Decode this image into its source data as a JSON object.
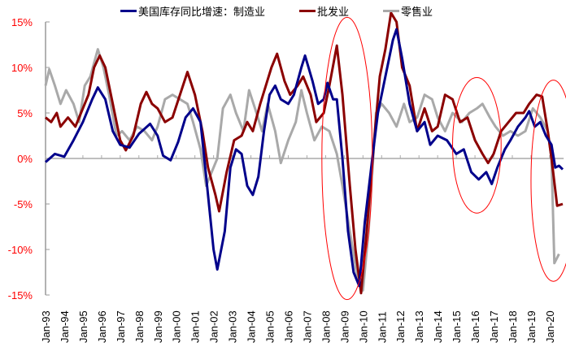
{
  "chart_data": {
    "type": "line",
    "title": "",
    "xlabel": "",
    "ylabel": "",
    "ylim": [
      -15,
      15
    ],
    "yticks": [
      15,
      10,
      5,
      0,
      -5,
      -10,
      -15
    ],
    "ytick_labels": [
      "15%",
      "10%",
      "5%",
      "0%",
      "-5%",
      "-10%",
      "-15%"
    ],
    "xlim": [
      1993,
      2020.9
    ],
    "xtick_labels": [
      "Jan-93",
      "Jan-94",
      "Jan-95",
      "Jan-96",
      "Jan-97",
      "Jan-98",
      "Jan-99",
      "Jan-00",
      "Jan-01",
      "Jan-02",
      "Jan-03",
      "Jan-04",
      "Jan-05",
      "Jan-06",
      "Jan-07",
      "Jan-08",
      "Jan-09",
      "Jan-10",
      "Jan-11",
      "Jan-12",
      "Jan-13",
      "Jan-14",
      "Jan-15",
      "Jan-16",
      "Jan-17",
      "Jan-18",
      "Jan-19",
      "Jan-20"
    ],
    "legend_position": "top",
    "series": [
      {
        "name": "美国库存同比增速：制造业",
        "color": "#00008b",
        "points": [
          [
            1993.0,
            -0.4
          ],
          [
            1993.5,
            0.5
          ],
          [
            1994.0,
            0.2
          ],
          [
            1994.5,
            2
          ],
          [
            1995.0,
            4
          ],
          [
            1995.5,
            6.5
          ],
          [
            1995.8,
            7.8
          ],
          [
            1996.2,
            6.5
          ],
          [
            1996.6,
            3
          ],
          [
            1997.0,
            1.5
          ],
          [
            1997.5,
            1.2
          ],
          [
            1998.0,
            2.7
          ],
          [
            1998.6,
            3.8
          ],
          [
            1999.0,
            2.5
          ],
          [
            1999.3,
            0.3
          ],
          [
            1999.7,
            -0.2
          ],
          [
            2000.1,
            1.8
          ],
          [
            2000.5,
            4.5
          ],
          [
            2000.9,
            5.5
          ],
          [
            2001.3,
            4
          ],
          [
            2001.6,
            -2
          ],
          [
            2002.0,
            -10
          ],
          [
            2002.2,
            -12.2
          ],
          [
            2002.6,
            -8
          ],
          [
            2002.9,
            -1
          ],
          [
            2003.2,
            1
          ],
          [
            2003.5,
            0.5
          ],
          [
            2003.8,
            -3
          ],
          [
            2004.1,
            -4
          ],
          [
            2004.4,
            -2
          ],
          [
            2004.7,
            3
          ],
          [
            2005.0,
            7
          ],
          [
            2005.3,
            8
          ],
          [
            2005.6,
            6.5
          ],
          [
            2006.0,
            6
          ],
          [
            2006.3,
            7
          ],
          [
            2006.7,
            10
          ],
          [
            2006.9,
            11.3
          ],
          [
            2007.3,
            8.5
          ],
          [
            2007.6,
            6
          ],
          [
            2007.9,
            6.5
          ],
          [
            2008.1,
            8.3
          ],
          [
            2008.4,
            6.5
          ],
          [
            2008.6,
            6.5
          ],
          [
            2008.9,
            0
          ],
          [
            2009.2,
            -8
          ],
          [
            2009.5,
            -12.5
          ],
          [
            2009.8,
            -14
          ],
          [
            2010.1,
            -7
          ],
          [
            2010.5,
            0
          ],
          [
            2010.8,
            5
          ],
          [
            2011.2,
            9
          ],
          [
            2011.6,
            13
          ],
          [
            2011.8,
            14.2
          ],
          [
            2012.1,
            11
          ],
          [
            2012.5,
            6
          ],
          [
            2012.9,
            3
          ],
          [
            2013.3,
            4
          ],
          [
            2013.6,
            1.5
          ],
          [
            2014.0,
            2.5
          ],
          [
            2014.5,
            2
          ],
          [
            2015.0,
            0.5
          ],
          [
            2015.4,
            1
          ],
          [
            2015.8,
            -1.5
          ],
          [
            2016.2,
            -2.3
          ],
          [
            2016.6,
            -1.5
          ],
          [
            2016.9,
            -2.8
          ],
          [
            2017.2,
            -1
          ],
          [
            2017.6,
            1
          ],
          [
            2017.9,
            2
          ],
          [
            2018.3,
            3.5
          ],
          [
            2018.7,
            4.5
          ],
          [
            2018.9,
            5.2
          ],
          [
            2019.2,
            3.5
          ],
          [
            2019.5,
            4
          ],
          [
            2019.8,
            2.5
          ],
          [
            2020.1,
            1.5
          ],
          [
            2020.3,
            -1
          ],
          [
            2020.5,
            -0.8
          ],
          [
            2020.7,
            -1.2
          ]
        ]
      },
      {
        "name": "批发业",
        "color": "#8b0000",
        "points": [
          [
            1993.0,
            4.5
          ],
          [
            1993.3,
            4
          ],
          [
            1993.6,
            5
          ],
          [
            1993.8,
            3.5
          ],
          [
            1994.2,
            4.5
          ],
          [
            1994.6,
            3.5
          ],
          [
            1994.9,
            5
          ],
          [
            1995.3,
            7
          ],
          [
            1995.6,
            10
          ],
          [
            1995.9,
            11.3
          ],
          [
            1996.2,
            10
          ],
          [
            1996.6,
            6
          ],
          [
            1997.0,
            2
          ],
          [
            1997.3,
            0.9
          ],
          [
            1997.7,
            2.5
          ],
          [
            1998.1,
            6
          ],
          [
            1998.4,
            7.3
          ],
          [
            1998.7,
            6
          ],
          [
            1999.0,
            5.5
          ],
          [
            1999.4,
            4
          ],
          [
            1999.8,
            4.5
          ],
          [
            2000.2,
            7
          ],
          [
            2000.6,
            9.5
          ],
          [
            2001.0,
            7
          ],
          [
            2001.4,
            3
          ],
          [
            2001.7,
            -1
          ],
          [
            2002.1,
            -4
          ],
          [
            2002.3,
            -5.8
          ],
          [
            2002.7,
            -1.5
          ],
          [
            2003.1,
            2
          ],
          [
            2003.5,
            2.5
          ],
          [
            2003.8,
            4
          ],
          [
            2004.1,
            3
          ],
          [
            2004.5,
            6
          ],
          [
            2004.8,
            8
          ],
          [
            2005.1,
            10
          ],
          [
            2005.4,
            11.5
          ],
          [
            2005.8,
            8.5
          ],
          [
            2006.1,
            7
          ],
          [
            2006.5,
            8
          ],
          [
            2006.8,
            9
          ],
          [
            2007.2,
            7
          ],
          [
            2007.5,
            4
          ],
          [
            2007.9,
            5
          ],
          [
            2008.2,
            8
          ],
          [
            2008.6,
            12.4
          ],
          [
            2008.9,
            7
          ],
          [
            2009.3,
            -3
          ],
          [
            2009.6,
            -10
          ],
          [
            2009.9,
            -14.8
          ],
          [
            2010.2,
            -8
          ],
          [
            2010.6,
            2
          ],
          [
            2010.9,
            9
          ],
          [
            2011.2,
            12
          ],
          [
            2011.5,
            16
          ],
          [
            2011.8,
            15
          ],
          [
            2012.1,
            10
          ],
          [
            2012.5,
            8
          ],
          [
            2012.9,
            3
          ],
          [
            2013.3,
            5.5
          ],
          [
            2013.7,
            3
          ],
          [
            2014.0,
            3.5
          ],
          [
            2014.4,
            7
          ],
          [
            2014.8,
            6.5
          ],
          [
            2015.2,
            4
          ],
          [
            2015.6,
            4.5
          ],
          [
            2016.0,
            2
          ],
          [
            2016.4,
            0.5
          ],
          [
            2016.7,
            -0.5
          ],
          [
            2017.0,
            0.5
          ],
          [
            2017.4,
            3
          ],
          [
            2017.8,
            4
          ],
          [
            2018.2,
            5
          ],
          [
            2018.6,
            5
          ],
          [
            2018.9,
            6
          ],
          [
            2019.3,
            7
          ],
          [
            2019.6,
            6.8
          ],
          [
            2019.9,
            3
          ],
          [
            2020.1,
            0
          ],
          [
            2020.4,
            -5.2
          ],
          [
            2020.7,
            -5
          ]
        ]
      },
      {
        "name": "零售业",
        "color": "#a9a9a9",
        "points": [
          [
            1993.0,
            8
          ],
          [
            1993.2,
            9.8
          ],
          [
            1993.5,
            8
          ],
          [
            1993.8,
            6
          ],
          [
            1994.1,
            7.5
          ],
          [
            1994.5,
            6
          ],
          [
            1994.8,
            4
          ],
          [
            1995.1,
            8
          ],
          [
            1995.4,
            9
          ],
          [
            1995.8,
            12
          ],
          [
            1996.1,
            10
          ],
          [
            1996.4,
            7
          ],
          [
            1996.8,
            2.5
          ],
          [
            1997.1,
            3
          ],
          [
            1997.5,
            2
          ],
          [
            1997.9,
            3.5
          ],
          [
            1998.3,
            3
          ],
          [
            1998.7,
            2
          ],
          [
            1999.0,
            3.5
          ],
          [
            1999.4,
            6.5
          ],
          [
            1999.8,
            7
          ],
          [
            2000.2,
            6.5
          ],
          [
            2000.6,
            6
          ],
          [
            2000.9,
            4
          ],
          [
            2001.3,
            1
          ],
          [
            2001.6,
            -3
          ],
          [
            2001.9,
            -1.5
          ],
          [
            2002.2,
            0
          ],
          [
            2002.5,
            5.5
          ],
          [
            2002.9,
            7
          ],
          [
            2003.2,
            5
          ],
          [
            2003.6,
            3
          ],
          [
            2003.9,
            7.5
          ],
          [
            2004.3,
            5
          ],
          [
            2004.6,
            3
          ],
          [
            2004.9,
            6
          ],
          [
            2005.3,
            3
          ],
          [
            2005.6,
            -0.5
          ],
          [
            2006.0,
            2
          ],
          [
            2006.4,
            4
          ],
          [
            2006.7,
            7.5
          ],
          [
            2007.0,
            5
          ],
          [
            2007.4,
            2
          ],
          [
            2007.8,
            3.5
          ],
          [
            2008.2,
            3
          ],
          [
            2008.6,
            0.5
          ],
          [
            2008.9,
            -3
          ],
          [
            2009.3,
            -8
          ],
          [
            2009.7,
            -13
          ],
          [
            2010.0,
            -14.5
          ],
          [
            2010.3,
            -8
          ],
          [
            2010.7,
            5
          ],
          [
            2011.0,
            6
          ],
          [
            2011.4,
            5
          ],
          [
            2011.8,
            3.5
          ],
          [
            2012.2,
            6
          ],
          [
            2012.5,
            4
          ],
          [
            2012.9,
            4.5
          ],
          [
            2013.3,
            7
          ],
          [
            2013.7,
            6.5
          ],
          [
            2014.0,
            4.5
          ],
          [
            2014.4,
            3
          ],
          [
            2014.8,
            5
          ],
          [
            2015.3,
            4
          ],
          [
            2015.7,
            5
          ],
          [
            2016.1,
            5.5
          ],
          [
            2016.4,
            6
          ],
          [
            2016.8,
            4.5
          ],
          [
            2017.1,
            3.5
          ],
          [
            2017.5,
            2.5
          ],
          [
            2017.9,
            3
          ],
          [
            2018.3,
            2.5
          ],
          [
            2018.7,
            3
          ],
          [
            2019.1,
            5.5
          ],
          [
            2019.5,
            4.5
          ],
          [
            2019.9,
            3
          ],
          [
            2020.1,
            0
          ],
          [
            2020.25,
            -11.5
          ],
          [
            2020.5,
            -10.5
          ]
        ]
      }
    ],
    "annotations": [
      {
        "type": "ellipse",
        "color": "#ff0000",
        "x_range": [
          2007.8,
          2010.5
        ],
        "y_range": [
          -15.5,
          15.5
        ]
      },
      {
        "type": "ellipse",
        "color": "#ff0000",
        "x_range": [
          2014.8,
          2017.4
        ],
        "y_range": [
          -6,
          8.9
        ]
      },
      {
        "type": "ellipse",
        "color": "#ff0000",
        "x_range": [
          2019.0,
          2021.4
        ],
        "y_range": [
          -13.5,
          8.6
        ]
      }
    ]
  }
}
